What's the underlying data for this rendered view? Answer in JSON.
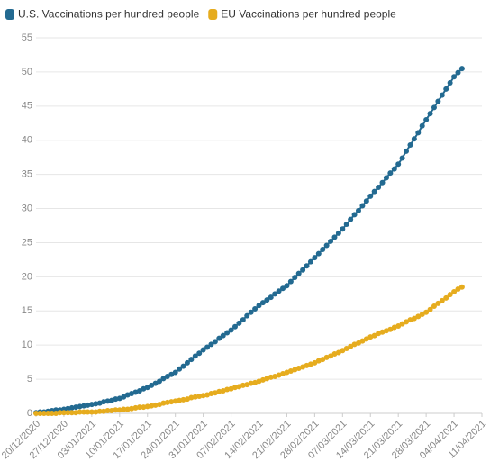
{
  "chart_data": {
    "type": "line",
    "x": [
      "20/12/2020",
      "21/12/2020",
      "22/12/2020",
      "23/12/2020",
      "24/12/2020",
      "25/12/2020",
      "26/12/2020",
      "27/12/2020",
      "28/12/2020",
      "29/12/2020",
      "30/12/2020",
      "31/12/2020",
      "01/01/2021",
      "02/01/2021",
      "03/01/2021",
      "04/01/2021",
      "05/01/2021",
      "06/01/2021",
      "07/01/2021",
      "08/01/2021",
      "09/01/2021",
      "10/01/2021",
      "11/01/2021",
      "12/01/2021",
      "13/01/2021",
      "14/01/2021",
      "15/01/2021",
      "16/01/2021",
      "17/01/2021",
      "18/01/2021",
      "19/01/2021",
      "20/01/2021",
      "21/01/2021",
      "22/01/2021",
      "23/01/2021",
      "24/01/2021",
      "25/01/2021",
      "26/01/2021",
      "27/01/2021",
      "28/01/2021",
      "29/01/2021",
      "30/01/2021",
      "31/01/2021",
      "01/02/2021",
      "02/02/2021",
      "03/02/2021",
      "04/02/2021",
      "05/02/2021",
      "06/02/2021",
      "07/02/2021",
      "08/02/2021",
      "09/02/2021",
      "10/02/2021",
      "11/02/2021",
      "12/02/2021",
      "13/02/2021",
      "14/02/2021",
      "15/02/2021",
      "16/02/2021",
      "17/02/2021",
      "18/02/2021",
      "19/02/2021",
      "20/02/2021",
      "21/02/2021",
      "22/02/2021",
      "23/02/2021",
      "24/02/2021",
      "25/02/2021",
      "26/02/2021",
      "27/02/2021",
      "28/02/2021",
      "01/03/2021",
      "02/03/2021",
      "03/03/2021",
      "04/03/2021",
      "05/03/2021",
      "06/03/2021",
      "07/03/2021",
      "08/03/2021",
      "09/03/2021",
      "10/03/2021",
      "11/03/2021",
      "12/03/2021",
      "13/03/2021",
      "14/03/2021",
      "15/03/2021",
      "16/03/2021",
      "17/03/2021",
      "18/03/2021",
      "19/03/2021",
      "20/03/2021",
      "21/03/2021",
      "22/03/2021",
      "23/03/2021",
      "24/03/2021",
      "25/03/2021",
      "26/03/2021",
      "27/03/2021",
      "28/03/2021",
      "29/03/2021",
      "30/03/2021",
      "31/03/2021",
      "01/04/2021",
      "02/04/2021",
      "03/04/2021",
      "04/04/2021",
      "05/04/2021",
      "06/04/2021"
    ],
    "series": [
      {
        "name": "U.S. Vaccinations per hundred people",
        "color": "#236a91",
        "values": [
          0.1,
          0.2,
          0.2,
          0.3,
          0.4,
          0.5,
          0.5,
          0.6,
          0.7,
          0.8,
          0.9,
          1.0,
          1.1,
          1.2,
          1.3,
          1.4,
          1.5,
          1.7,
          1.8,
          1.9,
          2.1,
          2.2,
          2.4,
          2.7,
          2.9,
          3.1,
          3.3,
          3.6,
          3.8,
          4.1,
          4.4,
          4.7,
          5.1,
          5.4,
          5.7,
          6.0,
          6.5,
          6.9,
          7.4,
          7.9,
          8.4,
          8.8,
          9.3,
          9.7,
          10.1,
          10.5,
          11.0,
          11.4,
          11.8,
          12.2,
          12.7,
          13.2,
          13.7,
          14.3,
          14.8,
          15.3,
          15.8,
          16.2,
          16.6,
          17.0,
          17.5,
          17.9,
          18.3,
          18.7,
          19.3,
          19.9,
          20.5,
          21.0,
          21.6,
          22.2,
          22.8,
          23.4,
          24.0,
          24.6,
          25.2,
          25.8,
          26.4,
          27.0,
          27.7,
          28.4,
          29.1,
          29.7,
          30.4,
          31.1,
          31.8,
          32.5,
          33.1,
          33.8,
          34.5,
          35.2,
          35.8,
          36.5,
          37.4,
          38.4,
          39.3,
          40.2,
          41.1,
          42.1,
          43.0,
          43.9,
          44.8,
          45.7,
          46.6,
          47.5,
          48.4,
          49.3,
          49.9,
          50.5
        ]
      },
      {
        "name": "EU Vaccinations per hundred people",
        "color": "#e6ac1e",
        "values": [
          0,
          0,
          0,
          0,
          0,
          0,
          0.1,
          0.1,
          0.1,
          0.1,
          0.1,
          0.2,
          0.2,
          0.2,
          0.2,
          0.2,
          0.3,
          0.3,
          0.4,
          0.4,
          0.5,
          0.5,
          0.6,
          0.6,
          0.7,
          0.8,
          0.9,
          0.9,
          1.0,
          1.1,
          1.2,
          1.3,
          1.5,
          1.6,
          1.7,
          1.8,
          1.9,
          2.0,
          2.1,
          2.3,
          2.4,
          2.5,
          2.6,
          2.7,
          2.9,
          3.0,
          3.2,
          3.3,
          3.5,
          3.6,
          3.8,
          3.9,
          4.1,
          4.2,
          4.4,
          4.5,
          4.7,
          4.9,
          5.1,
          5.3,
          5.4,
          5.6,
          5.8,
          6.0,
          6.2,
          6.4,
          6.6,
          6.8,
          7.0,
          7.2,
          7.4,
          7.7,
          7.9,
          8.2,
          8.4,
          8.7,
          8.9,
          9.2,
          9.5,
          9.8,
          10.1,
          10.3,
          10.6,
          10.9,
          11.2,
          11.4,
          11.7,
          11.9,
          12.1,
          12.3,
          12.6,
          12.8,
          13.1,
          13.4,
          13.7,
          13.9,
          14.2,
          14.5,
          14.8,
          15.2,
          15.7,
          16.1,
          16.5,
          16.9,
          17.4,
          17.8,
          18.2,
          18.5
        ]
      }
    ],
    "xlim": [
      "20/12/2020",
      "11/04/2021"
    ],
    "xticks": [
      "20/12/2020",
      "27/12/2020",
      "03/01/2021",
      "10/01/2021",
      "17/01/2021",
      "24/01/2021",
      "31/01/2021",
      "07/02/2021",
      "14/02/2021",
      "21/02/2021",
      "28/02/2021",
      "07/03/2021",
      "14/03/2021",
      "21/03/2021",
      "28/03/2021",
      "04/04/2021",
      "11/04/2021"
    ],
    "ylim": [
      0,
      55
    ],
    "yticks": [
      0,
      5,
      10,
      15,
      20,
      25,
      30,
      35,
      40,
      45,
      50,
      55
    ],
    "grid": true
  }
}
